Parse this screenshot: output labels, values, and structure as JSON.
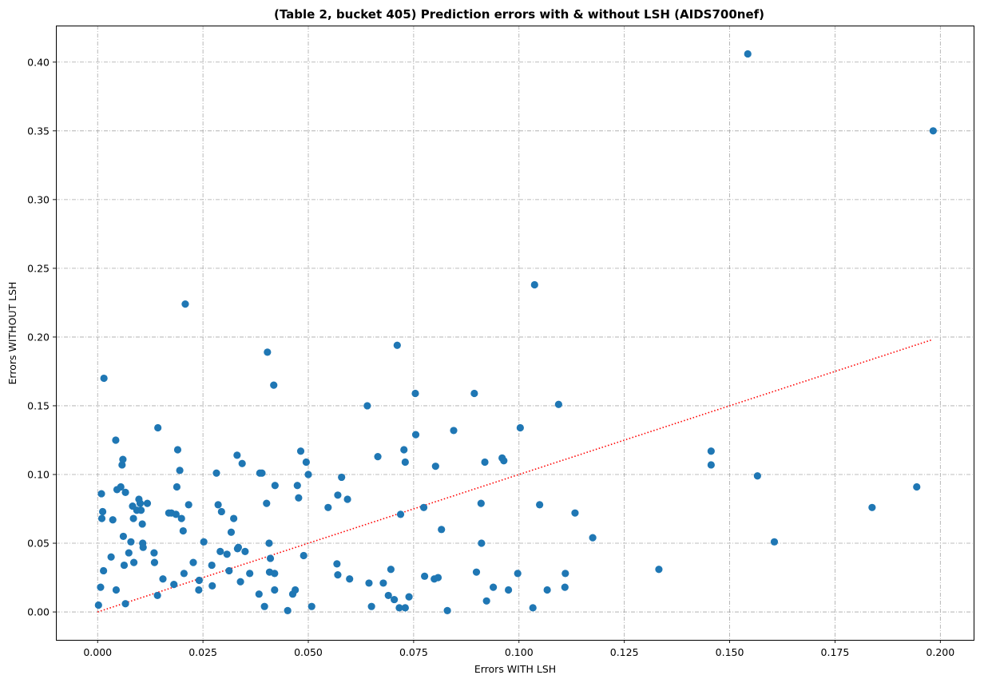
{
  "chart_data": {
    "type": "scatter",
    "title": "(Table 2, bucket 405) Prediction errors with & without LSH (AIDS700nef)",
    "xlabel": "Errors WITH LSH",
    "ylabel": "Errors WITHOUT LSH",
    "xlim": [
      -0.0099,
      0.2079
    ],
    "ylim": [
      -0.0203,
      0.4266
    ],
    "grid": true,
    "x_ticks": [
      0.0,
      0.025,
      0.05,
      0.075,
      0.1,
      0.125,
      0.15,
      0.175,
      0.2
    ],
    "x_tick_labels": [
      "0.000",
      "0.025",
      "0.050",
      "0.075",
      "0.100",
      "0.125",
      "0.150",
      "0.175",
      "0.200"
    ],
    "y_ticks": [
      0.0,
      0.05,
      0.1,
      0.15,
      0.2,
      0.25,
      0.3,
      0.35,
      0.4
    ],
    "y_tick_labels": [
      "0.00",
      "0.05",
      "0.10",
      "0.15",
      "0.20",
      "0.25",
      "0.30",
      "0.35",
      "0.40"
    ],
    "point_color": "#1f77b4",
    "reference_line": {
      "color": "#ff0000",
      "style": "dotted",
      "x": [
        0.0,
        0.198
      ],
      "y": [
        0.0,
        0.198
      ]
    },
    "series": [
      {
        "points": [
          [
            0.0002,
            0.005
          ],
          [
            0.0007,
            0.018
          ],
          [
            0.0009,
            0.086
          ],
          [
            0.001,
            0.068
          ],
          [
            0.0012,
            0.073
          ],
          [
            0.0014,
            0.03
          ],
          [
            0.0015,
            0.17
          ],
          [
            0.0032,
            0.04
          ],
          [
            0.0036,
            0.067
          ],
          [
            0.0043,
            0.125
          ],
          [
            0.0044,
            0.016
          ],
          [
            0.0046,
            0.089
          ],
          [
            0.0055,
            0.091
          ],
          [
            0.0058,
            0.107
          ],
          [
            0.006,
            0.111
          ],
          [
            0.0061,
            0.055
          ],
          [
            0.0063,
            0.034
          ],
          [
            0.0066,
            0.087
          ],
          [
            0.0066,
            0.006
          ],
          [
            0.0074,
            0.043
          ],
          [
            0.0079,
            0.051
          ],
          [
            0.0083,
            0.077
          ],
          [
            0.0085,
            0.068
          ],
          [
            0.0086,
            0.036
          ],
          [
            0.0093,
            0.074
          ],
          [
            0.0098,
            0.082
          ],
          [
            0.0101,
            0.079
          ],
          [
            0.0103,
            0.074
          ],
          [
            0.0106,
            0.064
          ],
          [
            0.0107,
            0.05
          ],
          [
            0.0108,
            0.047
          ],
          [
            0.0118,
            0.079
          ],
          [
            0.0134,
            0.043
          ],
          [
            0.0135,
            0.036
          ],
          [
            0.0142,
            0.012
          ],
          [
            0.0143,
            0.134
          ],
          [
            0.0155,
            0.024
          ],
          [
            0.0169,
            0.072
          ],
          [
            0.0175,
            0.072
          ],
          [
            0.0181,
            0.02
          ],
          [
            0.0186,
            0.071
          ],
          [
            0.0188,
            0.091
          ],
          [
            0.019,
            0.118
          ],
          [
            0.0195,
            0.103
          ],
          [
            0.0199,
            0.068
          ],
          [
            0.0203,
            0.059
          ],
          [
            0.0205,
            0.028
          ],
          [
            0.0208,
            0.224
          ],
          [
            0.0216,
            0.078
          ],
          [
            0.0227,
            0.036
          ],
          [
            0.024,
            0.016
          ],
          [
            0.0241,
            0.023
          ],
          [
            0.0252,
            0.051
          ],
          [
            0.0271,
            0.034
          ],
          [
            0.0272,
            0.019
          ],
          [
            0.0282,
            0.101
          ],
          [
            0.0286,
            0.078
          ],
          [
            0.0291,
            0.044
          ],
          [
            0.0294,
            0.073
          ],
          [
            0.0307,
            0.042
          ],
          [
            0.0312,
            0.03
          ],
          [
            0.0317,
            0.058
          ],
          [
            0.0323,
            0.068
          ],
          [
            0.0331,
            0.114
          ],
          [
            0.0332,
            0.046
          ],
          [
            0.0334,
            0.047
          ],
          [
            0.0339,
            0.022
          ],
          [
            0.0343,
            0.108
          ],
          [
            0.035,
            0.044
          ],
          [
            0.0361,
            0.028
          ],
          [
            0.0383,
            0.013
          ],
          [
            0.0385,
            0.101
          ],
          [
            0.039,
            0.101
          ],
          [
            0.0396,
            0.004
          ],
          [
            0.0401,
            0.079
          ],
          [
            0.0403,
            0.189
          ],
          [
            0.0407,
            0.05
          ],
          [
            0.0408,
            0.029
          ],
          [
            0.041,
            0.039
          ],
          [
            0.0418,
            0.165
          ],
          [
            0.042,
            0.028
          ],
          [
            0.042,
            0.016
          ],
          [
            0.0421,
            0.092
          ],
          [
            0.0451,
            0.001
          ],
          [
            0.0463,
            0.013
          ],
          [
            0.0469,
            0.016
          ],
          [
            0.0474,
            0.092
          ],
          [
            0.0477,
            0.083
          ],
          [
            0.0482,
            0.117
          ],
          [
            0.0489,
            0.041
          ],
          [
            0.0495,
            0.109
          ],
          [
            0.05,
            0.1
          ],
          [
            0.0508,
            0.004
          ],
          [
            0.0547,
            0.076
          ],
          [
            0.0568,
            0.035
          ],
          [
            0.057,
            0.085
          ],
          [
            0.057,
            0.027
          ],
          [
            0.0579,
            0.098
          ],
          [
            0.0593,
            0.082
          ],
          [
            0.0598,
            0.024
          ],
          [
            0.064,
            0.15
          ],
          [
            0.0644,
            0.021
          ],
          [
            0.065,
            0.004
          ],
          [
            0.0665,
            0.113
          ],
          [
            0.0678,
            0.021
          ],
          [
            0.069,
            0.012
          ],
          [
            0.0696,
            0.031
          ],
          [
            0.0704,
            0.009
          ],
          [
            0.0711,
            0.194
          ],
          [
            0.0716,
            0.003
          ],
          [
            0.0719,
            0.071
          ],
          [
            0.0727,
            0.118
          ],
          [
            0.073,
            0.109
          ],
          [
            0.073,
            0.003
          ],
          [
            0.0739,
            0.011
          ],
          [
            0.0754,
            0.159
          ],
          [
            0.0755,
            0.129
          ],
          [
            0.0774,
            0.076
          ],
          [
            0.0776,
            0.026
          ],
          [
            0.0799,
            0.024
          ],
          [
            0.0802,
            0.106
          ],
          [
            0.0808,
            0.025
          ],
          [
            0.0816,
            0.06
          ],
          [
            0.083,
            0.001
          ],
          [
            0.0845,
            0.132
          ],
          [
            0.0894,
            0.159
          ],
          [
            0.0899,
            0.029
          ],
          [
            0.091,
            0.079
          ],
          [
            0.0911,
            0.05
          ],
          [
            0.0919,
            0.109
          ],
          [
            0.0923,
            0.008
          ],
          [
            0.0939,
            0.018
          ],
          [
            0.096,
            0.112
          ],
          [
            0.0964,
            0.11
          ],
          [
            0.0975,
            0.016
          ],
          [
            0.0997,
            0.028
          ],
          [
            0.1003,
            0.134
          ],
          [
            0.1033,
            0.003
          ],
          [
            0.1037,
            0.238
          ],
          [
            0.1049,
            0.078
          ],
          [
            0.1067,
            0.016
          ],
          [
            0.1094,
            0.151
          ],
          [
            0.1109,
            0.018
          ],
          [
            0.111,
            0.028
          ],
          [
            0.1133,
            0.072
          ],
          [
            0.1175,
            0.054
          ],
          [
            0.1332,
            0.031
          ],
          [
            0.1456,
            0.117
          ],
          [
            0.1456,
            0.107
          ],
          [
            0.1543,
            0.406
          ],
          [
            0.1566,
            0.099
          ],
          [
            0.1606,
            0.051
          ],
          [
            0.1838,
            0.076
          ],
          [
            0.1944,
            0.091
          ],
          [
            0.1983,
            0.35
          ]
        ]
      }
    ]
  }
}
